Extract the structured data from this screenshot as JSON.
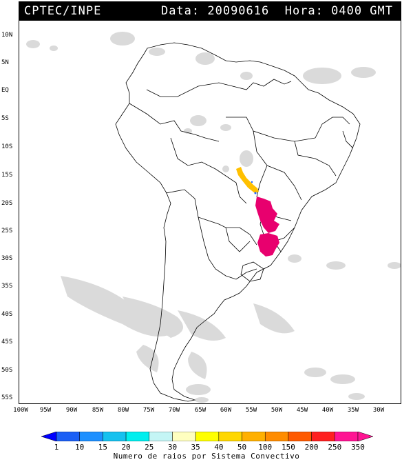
{
  "header": {
    "org": "CPTEC/INPE",
    "stamp": "Data: 20090616  Hora: 0400 GMT"
  },
  "map": {
    "lat_ticks": [
      "10N",
      "5N",
      "EQ",
      "5S",
      "10S",
      "15S",
      "20S",
      "25S",
      "30S",
      "35S",
      "40S",
      "45S",
      "50S",
      "55S"
    ],
    "lon_ticks": [
      "100W",
      "95W",
      "90W",
      "85W",
      "80W",
      "75W",
      "70W",
      "65W",
      "60W",
      "55W",
      "50W",
      "45W",
      "40W",
      "35W",
      "30W"
    ],
    "land_color": "#ffffff",
    "cloud_color": "#d6d6d6",
    "border_color": "#000000"
  },
  "legend": {
    "label": "Numero de raios por Sistema Convectivo",
    "values": [
      "1",
      "10",
      "15",
      "20",
      "25",
      "30",
      "35",
      "40",
      "50",
      "100",
      "150",
      "200",
      "250",
      "350"
    ],
    "colors": [
      "#0000ff",
      "#1b5ff5",
      "#1e90ff",
      "#16c1ef",
      "#00eeee",
      "#c4f5f5",
      "#ffffc0",
      "#ffff00",
      "#ffd700",
      "#ffb000",
      "#ff8c00",
      "#ff5a00",
      "#ff2020",
      "#ff1493"
    ]
  },
  "storms": {
    "orange_color": "#ffc000",
    "pink_color": "#e8006e"
  }
}
